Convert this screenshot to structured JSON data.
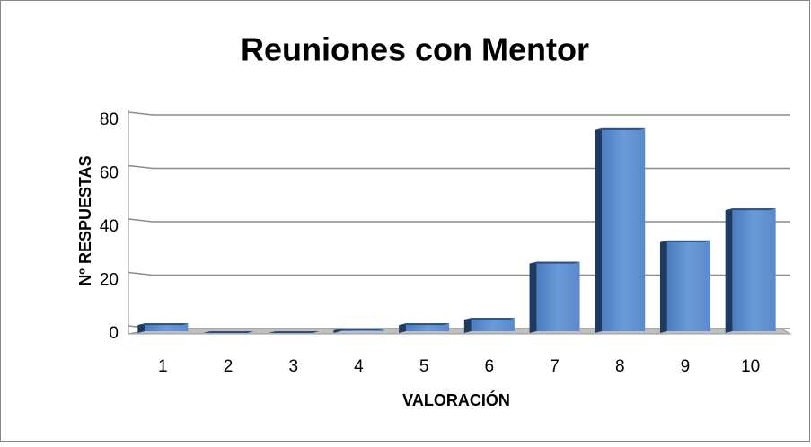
{
  "chart_data": {
    "type": "bar",
    "title": "Reuniones con Mentor",
    "xlabel": "VALORACIÓN",
    "ylabel": "Nº RESPUESTAS",
    "categories": [
      "1",
      "2",
      "3",
      "4",
      "5",
      "6",
      "7",
      "8",
      "9",
      "10"
    ],
    "values": [
      3,
      0,
      0,
      1,
      3,
      5,
      26,
      76,
      34,
      46
    ],
    "color": "#4f81bd",
    "ylim": [
      0,
      80
    ],
    "yticks": [
      0,
      20,
      40,
      60,
      80
    ],
    "grid": true
  }
}
